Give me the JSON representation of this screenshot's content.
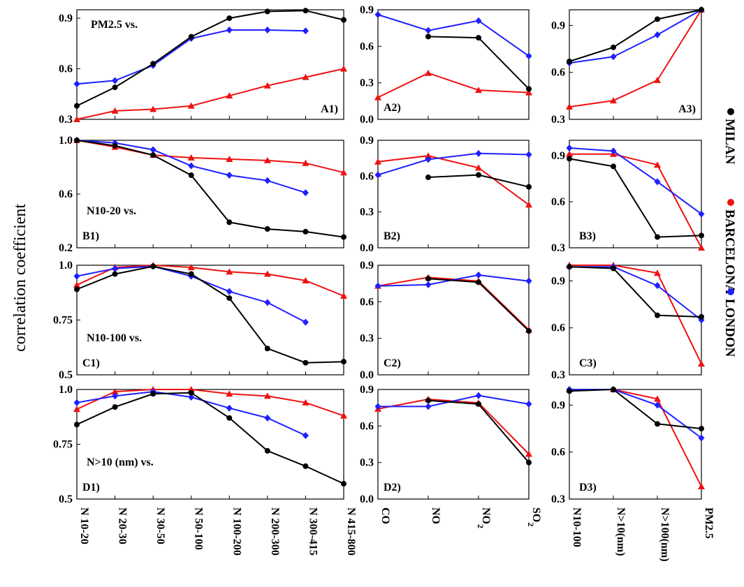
{
  "figure": {
    "y_axis_label": "correlation coefficient",
    "colors": {
      "MILAN": "#000000",
      "BARCELONA": "#ee1111",
      "LONDON": "#1f1fff"
    },
    "legend": [
      {
        "name": "MILAN",
        "marker": "circle"
      },
      {
        "name": "BARCELONA",
        "marker": "triangle"
      },
      {
        "name": "LONDON",
        "marker": "diamond"
      }
    ]
  },
  "chart_data": [
    {
      "id": "A1",
      "type": "line",
      "label": "A1)",
      "title": "PM2.5 vs.",
      "categories": [
        "N 10-20",
        "N 20-30",
        "N 30-50",
        "N 50-100",
        "N 100-200",
        "N 200-300",
        "N 300-415",
        "N 415-800"
      ],
      "ylim": [
        0.3,
        0.95
      ],
      "yticks": [
        0.3,
        0.6,
        0.9
      ],
      "ytick_labels": [
        "0.3",
        "0.6",
        "0.9"
      ],
      "series": [
        {
          "name": "MILAN",
          "values": [
            0.38,
            0.49,
            0.63,
            0.79,
            0.9,
            0.94,
            0.945,
            0.89
          ]
        },
        {
          "name": "BARCELONA",
          "values": [
            0.3,
            0.35,
            0.36,
            0.38,
            0.44,
            0.5,
            0.55,
            0.6
          ]
        },
        {
          "name": "LONDON",
          "values": [
            0.51,
            0.53,
            0.62,
            0.78,
            0.83,
            0.83,
            0.825,
            null
          ]
        }
      ]
    },
    {
      "id": "A2",
      "type": "line",
      "label": "A2)",
      "title": "",
      "categories": [
        "CO",
        "NO",
        "NO2",
        "SO2"
      ],
      "ylim": [
        0,
        0.9
      ],
      "yticks": [
        0,
        0.3,
        0.6,
        0.9
      ],
      "ytick_labels": [
        "0.0",
        "0.3",
        "0.6",
        "0.9"
      ],
      "series": [
        {
          "name": "MILAN",
          "values": [
            null,
            0.68,
            0.67,
            0.25
          ]
        },
        {
          "name": "BARCELONA",
          "values": [
            0.18,
            0.38,
            0.24,
            0.22
          ]
        },
        {
          "name": "LONDON",
          "values": [
            0.86,
            0.73,
            0.81,
            0.52
          ]
        }
      ]
    },
    {
      "id": "A3",
      "type": "line",
      "label": "A3)",
      "title": "",
      "categories": [
        "N10-100",
        "N>10(nm)",
        "N>100(nm)",
        "PM2.5"
      ],
      "ylim": [
        0.3,
        1.0
      ],
      "yticks": [
        0.3,
        0.6,
        0.9
      ],
      "ytick_labels": [
        "0.3",
        "0.6",
        "0.9"
      ],
      "series": [
        {
          "name": "MILAN",
          "values": [
            0.67,
            0.76,
            0.94,
            1.0
          ]
        },
        {
          "name": "BARCELONA",
          "values": [
            0.38,
            0.42,
            0.55,
            1.0
          ]
        },
        {
          "name": "LONDON",
          "values": [
            0.66,
            0.7,
            0.84,
            1.0
          ]
        }
      ]
    },
    {
      "id": "B1",
      "type": "line",
      "label": "B1)",
      "title": "N10-20 vs.",
      "categories": [
        "N 10-20",
        "N 20-30",
        "N 30-50",
        "N 50-100",
        "N 100-200",
        "N 200-300",
        "N 300-415",
        "N 415-800"
      ],
      "ylim": [
        0.2,
        1.0
      ],
      "yticks": [
        0.2,
        0.6,
        1.0
      ],
      "ytick_labels": [
        "0.2",
        "0.6",
        "1.0"
      ],
      "series": [
        {
          "name": "MILAN",
          "values": [
            1.0,
            0.96,
            0.89,
            0.74,
            0.39,
            0.34,
            0.32,
            0.28
          ]
        },
        {
          "name": "BARCELONA",
          "values": [
            1.0,
            0.95,
            0.89,
            0.87,
            0.86,
            0.85,
            0.83,
            0.76
          ]
        },
        {
          "name": "LONDON",
          "values": [
            1.0,
            0.98,
            0.93,
            0.81,
            0.74,
            0.7,
            0.61,
            null
          ]
        }
      ]
    },
    {
      "id": "B2",
      "type": "line",
      "label": "B2)",
      "title": "",
      "categories": [
        "CO",
        "NO",
        "NO2",
        "SO2"
      ],
      "ylim": [
        0,
        0.9
      ],
      "yticks": [
        0,
        0.3,
        0.6,
        0.9
      ],
      "ytick_labels": [
        "0.0",
        "0.3",
        "0.6",
        "0.9"
      ],
      "series": [
        {
          "name": "MILAN",
          "values": [
            null,
            0.59,
            0.61,
            0.51
          ]
        },
        {
          "name": "BARCELONA",
          "values": [
            0.72,
            0.77,
            0.67,
            0.36
          ]
        },
        {
          "name": "LONDON",
          "values": [
            0.61,
            0.74,
            0.79,
            0.78
          ]
        }
      ]
    },
    {
      "id": "B3",
      "type": "line",
      "label": "B3)",
      "title": "",
      "categories": [
        "N10-100",
        "N>10(nm)",
        "N>100(nm)",
        "PM2.5"
      ],
      "ylim": [
        0.3,
        1.0
      ],
      "yticks": [
        0.3,
        0.6,
        0.9
      ],
      "ytick_labels": [
        "0.3",
        "0.6",
        "0.9"
      ],
      "series": [
        {
          "name": "MILAN",
          "values": [
            0.88,
            0.83,
            0.37,
            0.38
          ]
        },
        {
          "name": "BARCELONA",
          "values": [
            0.91,
            0.91,
            0.84,
            0.3
          ]
        },
        {
          "name": "LONDON",
          "values": [
            0.95,
            0.93,
            0.73,
            0.52
          ]
        }
      ]
    },
    {
      "id": "C1",
      "type": "line",
      "label": "C1)",
      "title": "N10-100 vs.",
      "categories": [
        "N 10-20",
        "N 20-30",
        "N 30-50",
        "N 50-100",
        "N 100-200",
        "N 200-300",
        "N 300-415",
        "N 415-800"
      ],
      "ylim": [
        0.5,
        1.0
      ],
      "yticks": [
        0.5,
        0.75,
        1.0
      ],
      "ytick_labels": [
        "0.5",
        "0.75",
        "1.0"
      ],
      "series": [
        {
          "name": "MILAN",
          "values": [
            0.89,
            0.96,
            0.995,
            0.96,
            0.85,
            0.62,
            0.555,
            0.56
          ]
        },
        {
          "name": "BARCELONA",
          "values": [
            0.91,
            0.99,
            1.0,
            0.99,
            0.97,
            0.96,
            0.93,
            0.86
          ]
        },
        {
          "name": "LONDON",
          "values": [
            0.95,
            0.985,
            0.995,
            0.95,
            0.88,
            0.83,
            0.74,
            null
          ]
        }
      ]
    },
    {
      "id": "C2",
      "type": "line",
      "label": "C2)",
      "title": "",
      "categories": [
        "CO",
        "NO",
        "NO2",
        "SO2"
      ],
      "ylim": [
        0,
        0.9
      ],
      "yticks": [
        0,
        0.3,
        0.6,
        0.9
      ],
      "ytick_labels": [
        "0.0",
        "0.3",
        "0.6",
        "0.9"
      ],
      "series": [
        {
          "name": "MILAN",
          "values": [
            null,
            0.79,
            0.76,
            0.36
          ]
        },
        {
          "name": "BARCELONA",
          "values": [
            0.73,
            0.8,
            0.77,
            0.37
          ]
        },
        {
          "name": "LONDON",
          "values": [
            0.73,
            0.74,
            0.82,
            0.77
          ]
        }
      ]
    },
    {
      "id": "C3",
      "type": "line",
      "label": "C3)",
      "title": "",
      "categories": [
        "N10-100",
        "N>10(nm)",
        "N>100(nm)",
        "PM2.5"
      ],
      "ylim": [
        0.3,
        1.0
      ],
      "yticks": [
        0.3,
        0.6,
        0.9
      ],
      "ytick_labels": [
        "0.3",
        "0.6",
        "0.9"
      ],
      "series": [
        {
          "name": "MILAN",
          "values": [
            0.99,
            0.98,
            0.68,
            0.67
          ]
        },
        {
          "name": "BARCELONA",
          "values": [
            1.0,
            1.0,
            0.95,
            0.37
          ]
        },
        {
          "name": "LONDON",
          "values": [
            0.99,
            0.99,
            0.87,
            0.65
          ]
        }
      ]
    },
    {
      "id": "D1",
      "type": "line",
      "label": "D1)",
      "title": "N>10 (nm) vs.",
      "categories": [
        "N 10-20",
        "N 20-30",
        "N 30-50",
        "N 50-100",
        "N 100-200",
        "N 200-300",
        "N 300-415",
        "N 415-800"
      ],
      "ylim": [
        0.5,
        1.0
      ],
      "yticks": [
        0.5,
        0.75,
        1.0
      ],
      "ytick_labels": [
        "0.5",
        "0.75",
        "1.0"
      ],
      "series": [
        {
          "name": "MILAN",
          "values": [
            0.84,
            0.92,
            0.98,
            0.985,
            0.87,
            0.72,
            0.65,
            0.57
          ]
        },
        {
          "name": "BARCELONA",
          "values": [
            0.91,
            0.99,
            1.0,
            1.0,
            0.98,
            0.97,
            0.94,
            0.88
          ]
        },
        {
          "name": "LONDON",
          "values": [
            0.94,
            0.97,
            0.99,
            0.965,
            0.915,
            0.87,
            0.79,
            null
          ]
        }
      ]
    },
    {
      "id": "D2",
      "type": "line",
      "label": "D2)",
      "title": "",
      "categories": [
        "CO",
        "NO",
        "NO2",
        "SO2"
      ],
      "ylim": [
        0,
        0.9
      ],
      "yticks": [
        0,
        0.3,
        0.6,
        0.9
      ],
      "ytick_labels": [
        "0.0",
        "0.3",
        "0.6",
        "0.9"
      ],
      "series": [
        {
          "name": "MILAN",
          "values": [
            null,
            0.81,
            0.78,
            0.3
          ]
        },
        {
          "name": "BARCELONA",
          "values": [
            0.74,
            0.82,
            0.79,
            0.37
          ]
        },
        {
          "name": "LONDON",
          "values": [
            0.76,
            0.76,
            0.85,
            0.78
          ]
        }
      ]
    },
    {
      "id": "D3",
      "type": "line",
      "label": "D3)",
      "title": "",
      "categories": [
        "N10-100",
        "N>10(nm)",
        "N>100(nm)",
        "PM2.5"
      ],
      "ylim": [
        0.3,
        1.0
      ],
      "yticks": [
        0.3,
        0.6,
        0.9
      ],
      "ytick_labels": [
        "0.3",
        "0.6",
        "0.9"
      ],
      "series": [
        {
          "name": "MILAN",
          "values": [
            0.99,
            1.0,
            0.78,
            0.75
          ]
        },
        {
          "name": "BARCELONA",
          "values": [
            1.0,
            1.0,
            0.94,
            0.38
          ]
        },
        {
          "name": "LONDON",
          "values": [
            1.0,
            1.0,
            0.9,
            0.69
          ]
        }
      ]
    }
  ],
  "x_axes": {
    "column1": [
      "N 10-20",
      "N 20-30",
      "N 30-50",
      "N 50-100",
      "N 100-200",
      "N 200-300",
      "N 300-415",
      "N 415-800"
    ],
    "column2": [
      {
        "base": "CO",
        "sub": ""
      },
      {
        "base": "NO",
        "sub": ""
      },
      {
        "base": "NO",
        "sub": "2"
      },
      {
        "base": "SO",
        "sub": "2"
      }
    ],
    "column3": [
      "N10-100",
      "N>10(nm)",
      "N>100(nm)",
      "PM2.5"
    ]
  }
}
